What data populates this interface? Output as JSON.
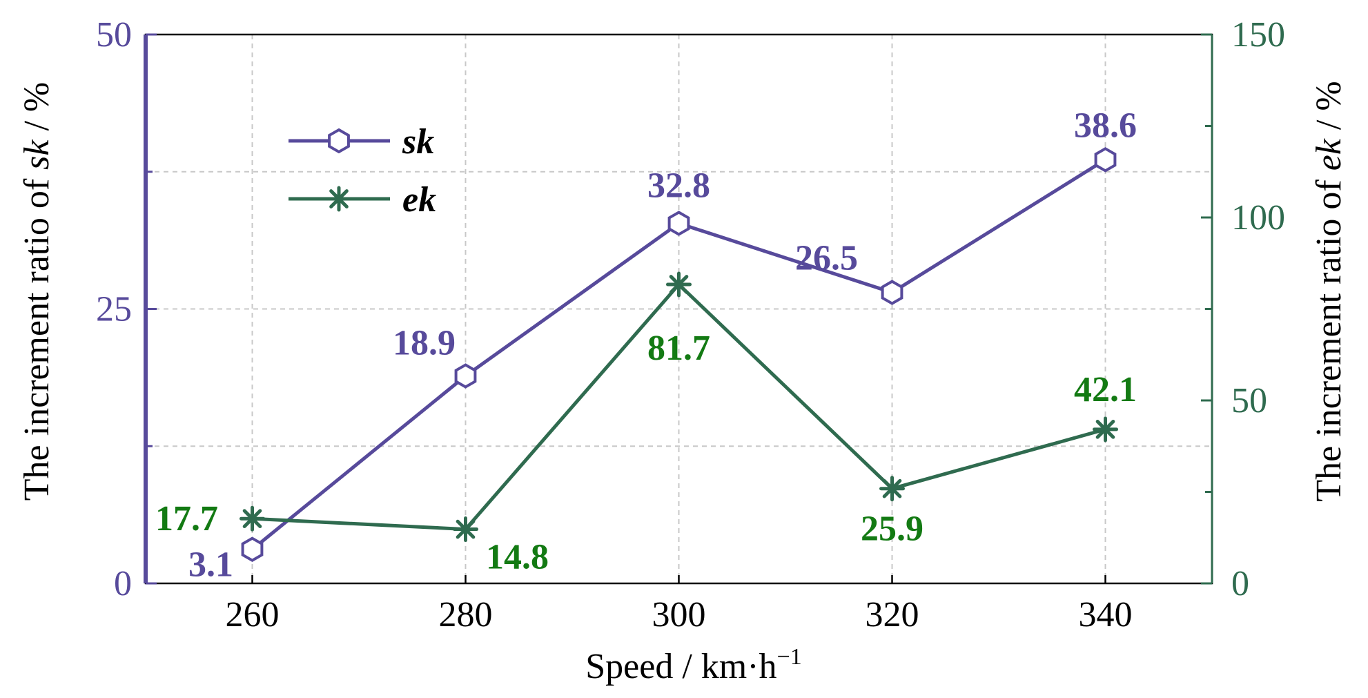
{
  "chart_data": {
    "type": "line",
    "x": [
      260,
      280,
      300,
      320,
      340
    ],
    "xlabel": "Speed / km·h",
    "xlabel_sup": "−1",
    "xlim": [
      250,
      350
    ],
    "xticks": [
      "260",
      "280",
      "300",
      "320",
      "340"
    ],
    "ylabel_left_prefix": "The increment ratio of ",
    "ylabel_left_var": "sk",
    "ylabel_left_suffix": " / %",
    "ylabel_right_prefix": "The increment ratio of ",
    "ylabel_right_var": "ek",
    "ylabel_right_suffix": " / %",
    "ylim_left": [
      0,
      50
    ],
    "ylim_right": [
      0,
      150
    ],
    "yticks_left": [
      "0",
      "25",
      "50"
    ],
    "yticks_right": [
      "0",
      "50",
      "100",
      "150"
    ],
    "grid": true,
    "legend_position": "top-left",
    "series": [
      {
        "name": "sk",
        "axis": "left",
        "color": "#574a9b",
        "marker": "hexagon-open",
        "values": [
          3.1,
          18.9,
          32.8,
          26.5,
          38.6
        ],
        "labels": [
          "3.1",
          "18.9",
          "32.8",
          "26.5",
          "38.6"
        ]
      },
      {
        "name": "ek",
        "axis": "right",
        "color": "#2f6b4f",
        "label_color": "#137a13",
        "marker": "asterisk",
        "values": [
          17.7,
          14.8,
          81.7,
          25.9,
          42.1
        ],
        "labels": [
          "17.7",
          "14.8",
          "81.7",
          "25.9",
          "42.1"
        ]
      }
    ]
  }
}
